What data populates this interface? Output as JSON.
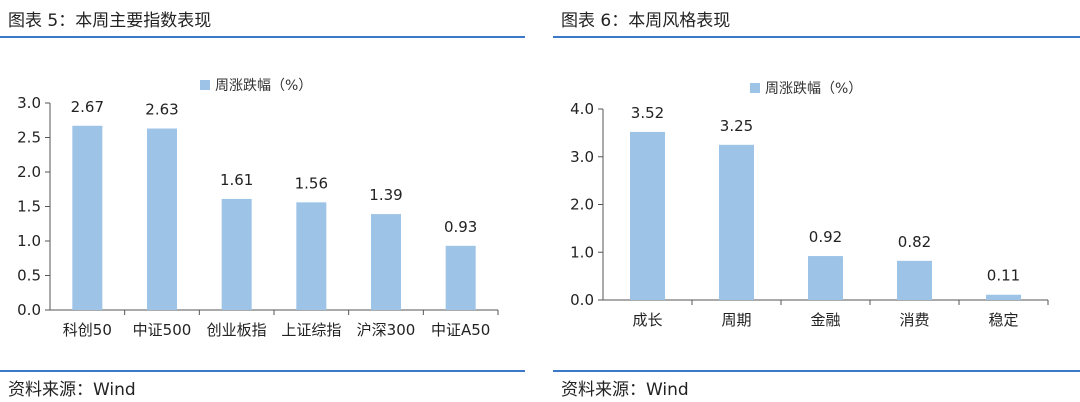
{
  "figures": [
    {
      "title": "图表 5：本周主要指数表现",
      "source": "资料来源：Wind"
    },
    {
      "title": "图表 6：本周风格表现",
      "source": "资料来源：Wind"
    }
  ],
  "colors": {
    "bar": "#9dc3e6",
    "rule": "#3b78c7",
    "axis": "#555555"
  },
  "chart_data": [
    {
      "type": "bar",
      "title": "",
      "categories": [
        "科创50",
        "中证500",
        "创业板指",
        "上证综指",
        "沪深300",
        "中证A50"
      ],
      "series": [
        {
          "name": "周涨跌幅（%）",
          "values": [
            2.67,
            2.63,
            1.61,
            1.56,
            1.39,
            0.93
          ]
        }
      ],
      "data_labels": [
        "2.67",
        "2.63",
        "1.61",
        "1.56",
        "1.39",
        "0.93"
      ],
      "yticks": [
        "0.0",
        "0.5",
        "1.0",
        "1.5",
        "2.0",
        "2.5",
        "3.0"
      ],
      "ylim": [
        0,
        3.0
      ],
      "legend": "top-center",
      "grid": false
    },
    {
      "type": "bar",
      "title": "",
      "categories": [
        "成长",
        "周期",
        "金融",
        "消费",
        "稳定"
      ],
      "series": [
        {
          "name": "周涨跌幅（%）",
          "values": [
            3.52,
            3.25,
            0.92,
            0.82,
            0.11
          ]
        }
      ],
      "data_labels": [
        "3.52",
        "3.25",
        "0.92",
        "0.82",
        "0.11"
      ],
      "yticks": [
        "0.0",
        "1.0",
        "2.0",
        "3.0",
        "4.0"
      ],
      "ylim": [
        0,
        4.0
      ],
      "legend": "top-center",
      "grid": false
    }
  ]
}
